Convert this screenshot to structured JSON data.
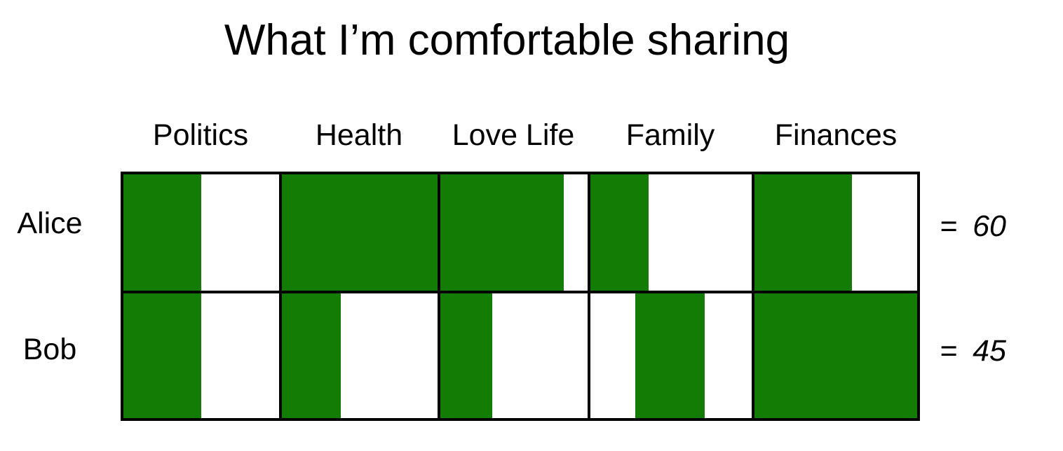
{
  "title": "What I’m comfortable sharing",
  "colors": {
    "fill": "#137c05",
    "empty": "#ffffff",
    "border": "#000000"
  },
  "columns": [
    "Politics",
    "Health",
    "Love Life",
    "Family",
    "Finances"
  ],
  "rows": [
    {
      "name": "Alice",
      "equals": "=",
      "total": "60",
      "shares": [
        {
          "start": 0.0,
          "end": 0.5
        },
        {
          "start": 0.0,
          "end": 1.0
        },
        {
          "start": 0.0,
          "end": 0.84
        },
        {
          "start": 0.0,
          "end": 0.36
        },
        {
          "start": 0.0,
          "end": 0.6
        }
      ]
    },
    {
      "name": "Bob",
      "equals": "=",
      "total": "45",
      "shares": [
        {
          "start": 0.0,
          "end": 0.5
        },
        {
          "start": 0.0,
          "end": 0.38
        },
        {
          "start": 0.0,
          "end": 0.35
        },
        {
          "start": 0.28,
          "end": 0.71
        },
        {
          "start": 0.0,
          "end": 1.0
        }
      ]
    }
  ]
}
